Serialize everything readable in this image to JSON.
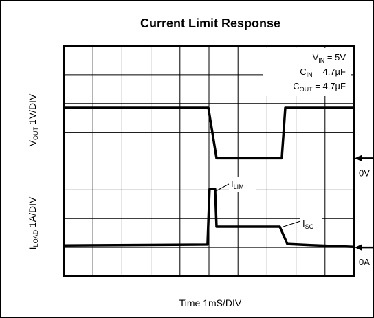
{
  "chart_data": {
    "type": "line",
    "title": "Current Limit Response",
    "x_label": "Time 1mS/DIV",
    "y_labels": [
      {
        "main": "V",
        "sub": "OUT",
        "rest": " 1V/DIV"
      },
      {
        "main": "I",
        "sub": "LOAD",
        "rest": " 1A/DIV"
      }
    ],
    "xlim": [
      0,
      10
    ],
    "ylim": [
      0,
      8
    ],
    "xticks": [
      0,
      1,
      2,
      3,
      4,
      5,
      6,
      7,
      8,
      9,
      10
    ],
    "yticks": [
      0,
      1,
      2,
      3,
      4,
      5,
      6,
      7,
      8
    ],
    "grid": true,
    "series": [
      {
        "color": "#000000",
        "x": [
          0,
          4.98,
          5.26,
          7.51,
          7.63,
          10
        ],
        "values": [
          5.85,
          5.85,
          4.1,
          4.1,
          5.85,
          5.85
        ]
      },
      {
        "color": "#000000",
        "x": [
          0,
          4.95,
          5.02,
          5.21,
          5.26,
          7.44,
          7.7,
          8.5,
          10
        ],
        "values": [
          1.07,
          1.1,
          3.03,
          3.03,
          1.72,
          1.72,
          1.12,
          1.08,
          1.02
        ]
      }
    ],
    "conditions": [
      {
        "main": "V",
        "sub": "IN",
        "rest": " = 5V"
      },
      {
        "main": "C",
        "sub": "IN",
        "rest": " = 4.7µF"
      },
      {
        "main": "C",
        "sub": "OUT",
        "rest": " = 4.7µF"
      }
    ],
    "callouts": [
      {
        "main": "I",
        "sub": "LIM"
      },
      {
        "main": "I",
        "sub": "SC"
      }
    ],
    "markers": [
      {
        "label": "0V",
        "value": 4.1
      },
      {
        "label": "0A",
        "value": 1.0
      }
    ]
  }
}
